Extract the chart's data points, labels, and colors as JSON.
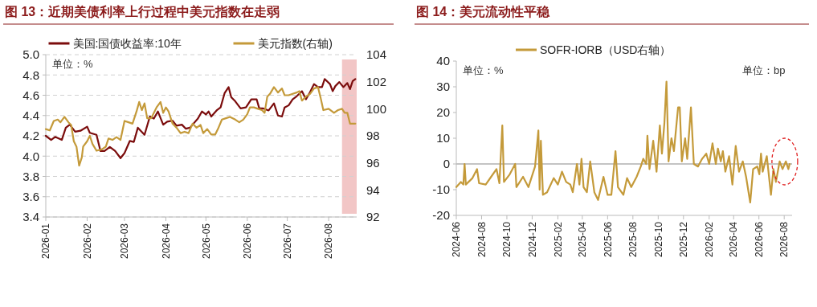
{
  "chart_data": [
    {
      "type": "line",
      "title": "图 13：近期美债利率上行过程中美元指数在走弱",
      "xlim": [
        "2026-01-01",
        "2026-08-22"
      ],
      "xticks": [
        "2026-01",
        "2026-02",
        "2026-03",
        "2026-04",
        "2026-05",
        "2026-06",
        "2026-07",
        "2026-08"
      ],
      "ylim": [
        3.4,
        5.0
      ],
      "yticks": [
        {
          "value": 3.4,
          "label": "3.4"
        },
        {
          "value": 3.6,
          "label": "3.6"
        },
        {
          "value": 3.8,
          "label": "3.8"
        },
        {
          "value": 4.0,
          "label": "4.0"
        },
        {
          "value": 4.2,
          "label": "4.2"
        },
        {
          "value": 4.4,
          "label": "4.4"
        },
        {
          "value": 4.6,
          "label": "4.6"
        },
        {
          "value": 4.8,
          "label": "4.8"
        },
        {
          "value": 5.0,
          "label": "5.0"
        }
      ],
      "y2lim": [
        92,
        104
      ],
      "y2ticks": [
        92,
        94,
        96,
        98,
        100,
        102,
        104
      ],
      "grid": "y",
      "legend": "top",
      "line_style": "solid",
      "annotations": [
        "单位：%"
      ],
      "bands": [
        {
          "axis": "x",
          "from": "2026-08-11",
          "to": "2026-08-22",
          "color": "#f2c6c6"
        }
      ],
      "series": [
        {
          "name": "美国:国债收益率:10年",
          "color": "#7b0c0c",
          "x": [
            "2026-01-01",
            "2026-01-05",
            "2026-01-08",
            "2026-01-13",
            "2026-01-16",
            "2026-01-19",
            "2026-01-23",
            "2026-01-27",
            "2026-02-01",
            "2026-02-03",
            "2026-02-08",
            "2026-02-11",
            "2026-02-14",
            "2026-02-18",
            "2026-02-22",
            "2026-02-26",
            "2026-03-01",
            "2026-03-05",
            "2026-03-08",
            "2026-03-11",
            "2026-03-16",
            "2026-03-20",
            "2026-03-23",
            "2026-03-26",
            "2026-03-30",
            "2026-04-02",
            "2026-04-06",
            "2026-04-09",
            "2026-04-13",
            "2026-04-16",
            "2026-04-19",
            "2026-04-21",
            "2026-04-25",
            "2026-04-28",
            "2026-05-01",
            "2026-05-03",
            "2026-05-05",
            "2026-05-09",
            "2026-05-12",
            "2026-05-15",
            "2026-05-18",
            "2026-05-20",
            "2026-05-23",
            "2026-05-27",
            "2026-05-31",
            "2026-06-04",
            "2026-06-08",
            "2026-06-10",
            "2026-06-13",
            "2026-06-17",
            "2026-06-21",
            "2026-06-24",
            "2026-06-27",
            "2026-06-29",
            "2026-07-02",
            "2026-07-05",
            "2026-07-08",
            "2026-07-12",
            "2026-07-15",
            "2026-07-18",
            "2026-07-21",
            "2026-07-24",
            "2026-07-27",
            "2026-07-29",
            "2026-08-02",
            "2026-08-04",
            "2026-08-06",
            "2026-08-09",
            "2026-08-12",
            "2026-08-15",
            "2026-08-17",
            "2026-08-19",
            "2026-08-21"
          ],
          "values": [
            4.2,
            4.16,
            4.19,
            4.16,
            4.28,
            4.31,
            4.24,
            4.25,
            4.29,
            4.23,
            4.21,
            4.05,
            4.05,
            4.09,
            4.05,
            3.98,
            4.03,
            4.15,
            4.14,
            4.28,
            4.21,
            4.39,
            4.37,
            4.44,
            4.31,
            4.34,
            4.35,
            4.3,
            4.31,
            4.27,
            4.28,
            4.31,
            4.37,
            4.44,
            4.41,
            4.44,
            4.39,
            4.45,
            4.48,
            4.62,
            4.68,
            4.58,
            4.54,
            4.47,
            4.48,
            4.56,
            4.56,
            4.47,
            4.47,
            4.45,
            4.52,
            4.4,
            4.39,
            4.48,
            4.5,
            4.56,
            4.59,
            4.64,
            4.56,
            4.63,
            4.71,
            4.68,
            4.68,
            4.76,
            4.71,
            4.64,
            4.69,
            4.73,
            4.68,
            4.72,
            4.66,
            4.74,
            4.76
          ]
        },
        {
          "name": "美元指数(右轴)",
          "color": "#c49a3a",
          "axis": "y2",
          "x": [
            "2026-01-01",
            "2026-01-04",
            "2026-01-07",
            "2026-01-10",
            "2026-01-12",
            "2026-01-15",
            "2026-01-18",
            "2026-01-20",
            "2026-01-22",
            "2026-01-24",
            "2026-01-26",
            "2026-01-28",
            "2026-01-29",
            "2026-02-01",
            "2026-02-03",
            "2026-02-05",
            "2026-02-08",
            "2026-02-12",
            "2026-02-15",
            "2026-02-17",
            "2026-02-20",
            "2026-02-23",
            "2026-02-26",
            "2026-03-01",
            "2026-03-04",
            "2026-03-07",
            "2026-03-10",
            "2026-03-12",
            "2026-03-14",
            "2026-03-16",
            "2026-03-18",
            "2026-03-21",
            "2026-03-25",
            "2026-03-28",
            "2026-03-30",
            "2026-04-01",
            "2026-04-03",
            "2026-04-06",
            "2026-04-09",
            "2026-04-12",
            "2026-04-15",
            "2026-04-18",
            "2026-04-21",
            "2026-04-24",
            "2026-04-27",
            "2026-04-29",
            "2026-05-02",
            "2026-05-05",
            "2026-05-08",
            "2026-05-10",
            "2026-05-13",
            "2026-05-16",
            "2026-05-19",
            "2026-05-23",
            "2026-05-26",
            "2026-05-29",
            "2026-06-01",
            "2026-06-03",
            "2026-06-06",
            "2026-06-09",
            "2026-06-12",
            "2026-06-14",
            "2026-06-16",
            "2026-06-18",
            "2026-06-21",
            "2026-06-24",
            "2026-06-27",
            "2026-06-29",
            "2026-07-02",
            "2026-07-05",
            "2026-07-08",
            "2026-07-10",
            "2026-07-12",
            "2026-07-15",
            "2026-07-18",
            "2026-07-21",
            "2026-07-24",
            "2026-07-26",
            "2026-07-28",
            "2026-08-01",
            "2026-08-05",
            "2026-08-08",
            "2026-08-11",
            "2026-08-13",
            "2026-08-15",
            "2026-08-17",
            "2026-08-21"
          ],
          "values": [
            98.5,
            98.4,
            99.1,
            99.2,
            99.0,
            99.4,
            99.0,
            98.8,
            97.6,
            97.2,
            95.8,
            96.4,
            97.2,
            97.6,
            98.0,
            97.4,
            96.9,
            97.0,
            97.2,
            97.8,
            97.7,
            97.9,
            97.7,
            99.1,
            99.0,
            98.9,
            99.8,
            100.5,
            99.9,
            100.4,
            99.3,
            99.3,
            100.1,
            100.5,
            99.7,
            100.1,
            99.8,
            98.9,
            98.6,
            98.2,
            98.3,
            98.2,
            98.9,
            98.6,
            98.8,
            98.2,
            98.5,
            98.1,
            98.1,
            98.5,
            99.2,
            99.3,
            99.4,
            99.2,
            99.0,
            99.2,
            99.6,
            100.1,
            100.1,
            100.0,
            99.9,
            99.7,
            100.9,
            101.1,
            101.6,
            101.2,
            101.5,
            101.0,
            101.0,
            101.1,
            101.2,
            101.3,
            100.6,
            100.9,
            101.1,
            101.5,
            101.6,
            100.8,
            99.9,
            100.0,
            99.7,
            99.9,
            100.0,
            99.7,
            99.7,
            98.9,
            98.9
          ]
        }
      ]
    },
    {
      "type": "line",
      "title": "图 14：美元流动性平稳",
      "xlim": [
        "2024-06-01",
        "2026-08-20"
      ],
      "xticks": [
        "2024-06",
        "2024-08",
        "2024-10",
        "2024-12",
        "2025-02",
        "2025-04",
        "2025-06",
        "2025-08",
        "2025-10",
        "2025-12",
        "2026-02",
        "2026-04",
        "2026-06",
        "2026-08"
      ],
      "ylim": [
        -20,
        40
      ],
      "yticks": [
        -20,
        -10,
        0,
        10,
        20,
        30,
        40
      ],
      "legend": "top",
      "line_style": "solid",
      "annotations": [
        "单位：%",
        "单位：bp"
      ],
      "ref_lines": [
        {
          "axis": "y",
          "value": 0,
          "color": "#b0b0b0"
        }
      ],
      "series": [
        {
          "name": "SOFR-IORB（USD右轴）",
          "color": "#c49a3a",
          "x": [
            "2024-06-01",
            "2024-06-12",
            "2024-06-18",
            "2024-06-21",
            "2024-06-24",
            "2024-07-10",
            "2024-07-21",
            "2024-07-26",
            "2024-08-11",
            "2024-08-24",
            "2024-09-06",
            "2024-09-13",
            "2024-09-20",
            "2024-09-24",
            "2024-10-08",
            "2024-10-21",
            "2024-10-24",
            "2024-11-09",
            "2024-11-22",
            "2024-12-08",
            "2024-12-16",
            "2024-12-19",
            "2024-12-22",
            "2024-12-27",
            "2025-01-06",
            "2025-01-22",
            "2025-02-01",
            "2025-02-11",
            "2025-02-21",
            "2025-03-03",
            "2025-03-09",
            "2025-03-19",
            "2025-03-25",
            "2025-03-30",
            "2025-04-04",
            "2025-04-12",
            "2025-04-20",
            "2025-04-30",
            "2025-05-09",
            "2025-05-22",
            "2025-06-01",
            "2025-06-10",
            "2025-06-20",
            "2025-06-26",
            "2025-07-09",
            "2025-07-18",
            "2025-07-28",
            "2025-08-10",
            "2025-08-20",
            "2025-08-26",
            "2025-09-02",
            "2025-09-05",
            "2025-09-10",
            "2025-09-19",
            "2025-09-27",
            "2025-10-05",
            "2025-10-10",
            "2025-10-16",
            "2025-10-21",
            "2025-10-26",
            "2025-11-02",
            "2025-11-08",
            "2025-11-18",
            "2025-11-22",
            "2025-11-27",
            "2025-12-05",
            "2025-12-10",
            "2025-12-19",
            "2025-12-26",
            "2026-01-05",
            "2026-01-15",
            "2026-01-25",
            "2026-02-01",
            "2026-02-09",
            "2026-02-17",
            "2026-02-22",
            "2026-03-01",
            "2026-03-06",
            "2026-03-12",
            "2026-03-21",
            "2026-03-29",
            "2026-04-06",
            "2026-04-14",
            "2026-04-23",
            "2026-05-01",
            "2026-05-11",
            "2026-05-18",
            "2026-05-28",
            "2026-06-02",
            "2026-06-06",
            "2026-06-10",
            "2026-06-20",
            "2026-06-30",
            "2026-07-06",
            "2026-07-12",
            "2026-07-21",
            "2026-07-28",
            "2026-08-05",
            "2026-08-11",
            "2026-08-14"
          ],
          "values": [
            -9,
            -7,
            -8,
            0,
            -8,
            -5.5,
            -2,
            -7.5,
            -8,
            -5,
            -2,
            -7.5,
            15,
            -7,
            -4,
            0,
            -9,
            -5,
            -9,
            -1,
            13,
            -10,
            9,
            -12,
            -11,
            -5.5,
            -8,
            -3,
            -7,
            -8,
            -11,
            0,
            -8,
            2,
            -9,
            -11,
            1,
            -11,
            -14,
            -5,
            -12,
            -12,
            5,
            -9,
            -12,
            -5.5,
            -9,
            -5,
            -1,
            2,
            0,
            11,
            -2,
            9,
            -3,
            15,
            4,
            16,
            32,
            1,
            10,
            5,
            22,
            22,
            1,
            10,
            2,
            22,
            0,
            -1,
            2,
            4,
            0,
            8,
            0,
            6,
            1,
            5,
            -3,
            3,
            -8,
            7,
            -3,
            1,
            -5,
            -15,
            -2,
            -1,
            -4,
            4,
            -3,
            3,
            -12,
            -2,
            -7,
            1,
            -2,
            1,
            -2,
            0
          ]
        }
      ]
    }
  ]
}
